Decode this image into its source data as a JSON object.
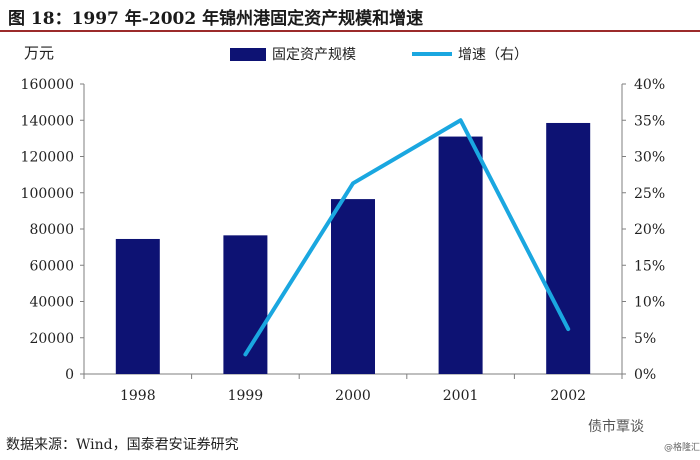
{
  "title": "图  18：1997 年-2002 年锦州港固定资产规模和增速",
  "unit_label": "万元",
  "source": "数据来源：Wind，国泰君安证券研究",
  "watermark": "债市覃谈",
  "watermark_small": "@格隆汇",
  "colors": {
    "bar": "#0d1273",
    "line": "#1aa7e0",
    "title_rule": "#9c2b2b"
  },
  "chart_data": {
    "type": "bar",
    "categories": [
      "1998",
      "1999",
      "2000",
      "2001",
      "2002"
    ],
    "series": [
      {
        "name": "固定资产规模",
        "type": "bar",
        "axis": "left",
        "values": [
          74500,
          76500,
          96500,
          131000,
          138500
        ]
      },
      {
        "name": "增速（右）",
        "type": "line",
        "axis": "right",
        "values": [
          null,
          2.7,
          26.3,
          35.0,
          6.2
        ]
      }
    ],
    "y_left": {
      "min": 0,
      "max": 160000,
      "ticks": [
        "0",
        "20000",
        "40000",
        "60000",
        "80000",
        "100000",
        "120000",
        "140000",
        "160000"
      ]
    },
    "y_right": {
      "min": 0,
      "max": 40,
      "ticks": [
        "0%",
        "5%",
        "10%",
        "15%",
        "20%",
        "25%",
        "30%",
        "35%",
        "40%"
      ]
    },
    "legend": [
      "固定资产规模",
      "增速（右）"
    ],
    "legend_position": "top",
    "grid": false
  }
}
